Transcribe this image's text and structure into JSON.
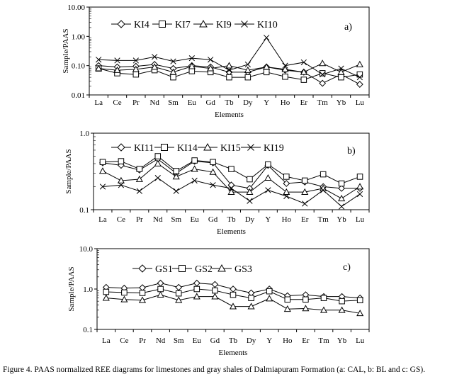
{
  "caption": "Figure 4. PAAS normalized REE diagrams for limestones and gray shales of Dalmiapuram Formation (a: CAL, b: BL and c: GS).",
  "chart_data": [
    {
      "type": "line",
      "panel_label": "a)",
      "ylabel": "Sample/PAAS",
      "xlabel": "Elements",
      "yscale": "log",
      "ylim": [
        0.01,
        10
      ],
      "yticks": [
        "0.01",
        "0.10",
        "1.00",
        "10.00"
      ],
      "categories": [
        "La",
        "Ce",
        "Pr",
        "Nd",
        "Sm",
        "Eu",
        "Gd",
        "Tb",
        "Dy",
        "Y",
        "Ho",
        "Er",
        "Tm",
        "Yb",
        "Lu"
      ],
      "series": [
        {
          "name": "KI4",
          "marker": "diamond",
          "values": [
            0.1,
            0.09,
            0.095,
            0.11,
            0.08,
            0.1,
            0.09,
            0.06,
            0.06,
            0.09,
            0.07,
            0.06,
            0.025,
            0.05,
            0.023
          ]
        },
        {
          "name": "KI7",
          "marker": "square",
          "values": [
            0.08,
            0.055,
            0.05,
            0.07,
            0.04,
            0.065,
            0.06,
            0.04,
            0.04,
            0.06,
            0.042,
            0.033,
            0.055,
            0.04,
            0.05
          ]
        },
        {
          "name": "KI9",
          "marker": "triangle",
          "values": [
            0.08,
            0.07,
            0.075,
            0.09,
            0.06,
            0.095,
            0.08,
            0.1,
            0.07,
            0.09,
            0.075,
            0.06,
            0.12,
            0.06,
            0.11
          ]
        },
        {
          "name": "KI10",
          "marker": "x",
          "values": [
            0.16,
            0.15,
            0.15,
            0.2,
            0.14,
            0.18,
            0.16,
            0.07,
            0.11,
            0.9,
            0.1,
            0.13,
            0.05,
            0.08,
            0.04
          ]
        }
      ]
    },
    {
      "type": "line",
      "panel_label": "b)",
      "ylabel": "Sample/PAAS",
      "xlabel": "Elements",
      "yscale": "log",
      "ylim": [
        0.1,
        1
      ],
      "yticks": [
        "0.1",
        "1.0"
      ],
      "categories": [
        "La",
        "Ce",
        "Pr",
        "Nd",
        "Sm",
        "Eu",
        "Gd",
        "Tb",
        "Dy",
        "Y",
        "Ho",
        "Er",
        "Tm",
        "Yb",
        "Lu"
      ],
      "series": [
        {
          "name": "KI11",
          "marker": "diamond",
          "values": [
            0.41,
            0.38,
            0.33,
            0.46,
            0.3,
            0.43,
            0.41,
            0.21,
            0.19,
            0.38,
            0.22,
            0.23,
            0.2,
            0.19,
            0.19
          ]
        },
        {
          "name": "KI14",
          "marker": "square",
          "values": [
            0.42,
            0.43,
            0.34,
            0.5,
            0.32,
            0.44,
            0.42,
            0.34,
            0.25,
            0.39,
            0.27,
            0.24,
            0.29,
            0.22,
            0.27
          ]
        },
        {
          "name": "KI15",
          "marker": "triangle",
          "values": [
            0.32,
            0.24,
            0.25,
            0.4,
            0.27,
            0.34,
            0.31,
            0.17,
            0.17,
            0.26,
            0.17,
            0.17,
            0.19,
            0.14,
            0.2
          ]
        },
        {
          "name": "KI19",
          "marker": "x",
          "values": [
            0.2,
            0.21,
            0.175,
            0.26,
            0.175,
            0.24,
            0.21,
            0.19,
            0.13,
            0.18,
            0.15,
            0.12,
            0.18,
            0.11,
            0.16
          ]
        }
      ]
    },
    {
      "type": "line",
      "panel_label": "c)",
      "ylabel": "Sample/PAAS",
      "xlabel": "Elements",
      "yscale": "log",
      "ylim": [
        0.1,
        10
      ],
      "yticks": [
        "0.1",
        "1.0",
        "10.0"
      ],
      "categories": [
        "La",
        "Ce",
        "Pr",
        "Nd",
        "Sm",
        "Eu",
        "Gd",
        "Tb",
        "Dy",
        "Y",
        "Ho",
        "Er",
        "Tm",
        "Yb",
        "Lu"
      ],
      "series": [
        {
          "name": "GS1",
          "marker": "diamond",
          "values": [
            1.1,
            1.05,
            1.08,
            1.4,
            1.1,
            1.4,
            1.3,
            1.0,
            0.8,
            1.0,
            0.68,
            0.72,
            0.65,
            0.65,
            0.6
          ]
        },
        {
          "name": "GS2",
          "marker": "square",
          "values": [
            0.85,
            0.82,
            0.8,
            1.0,
            0.78,
            1.0,
            0.92,
            0.72,
            0.6,
            0.88,
            0.55,
            0.55,
            0.6,
            0.5,
            0.53
          ]
        },
        {
          "name": "GS3",
          "marker": "triangle",
          "values": [
            0.6,
            0.55,
            0.53,
            0.72,
            0.53,
            0.65,
            0.65,
            0.37,
            0.37,
            0.58,
            0.32,
            0.33,
            0.3,
            0.3,
            0.25
          ]
        }
      ]
    }
  ]
}
